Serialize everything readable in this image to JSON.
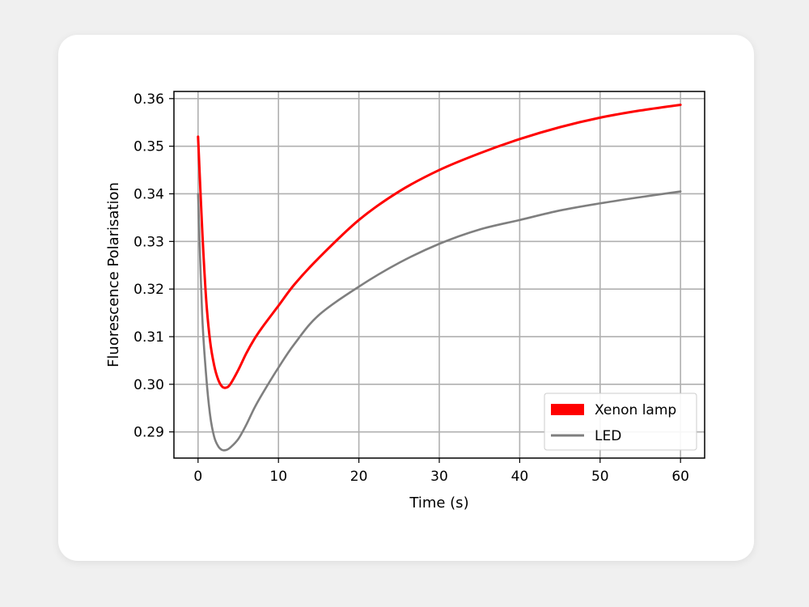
{
  "chart_data": {
    "type": "line",
    "title": "",
    "xlabel": "Time (s)",
    "ylabel": "Fluorescence Polarisation",
    "xlim": [
      -3,
      63
    ],
    "ylim": [
      0.2845,
      0.3615
    ],
    "xticks": [
      0,
      10,
      20,
      30,
      40,
      50,
      60
    ],
    "xtick_labels": [
      "0",
      "10",
      "20",
      "30",
      "40",
      "50",
      "60"
    ],
    "yticks": [
      0.29,
      0.3,
      0.31,
      0.32,
      0.33,
      0.34,
      0.35,
      0.36
    ],
    "ytick_labels": [
      "0.29",
      "0.30",
      "0.31",
      "0.32",
      "0.33",
      "0.34",
      "0.35",
      "0.36"
    ],
    "grid": true,
    "legend_position": "lower-right",
    "series": [
      {
        "name": "Xenon lamp",
        "color": "#ff0000",
        "x": [
          0,
          0.5,
          1,
          1.5,
          2,
          2.5,
          3,
          3.5,
          4,
          5,
          6,
          7,
          8,
          10,
          12,
          15,
          20,
          25,
          30,
          35,
          40,
          45,
          50,
          55,
          60
        ],
        "y": [
          0.352,
          0.333,
          0.318,
          0.309,
          0.304,
          0.301,
          0.2995,
          0.2993,
          0.3,
          0.303,
          0.3065,
          0.3095,
          0.312,
          0.3165,
          0.321,
          0.3265,
          0.3345,
          0.3405,
          0.345,
          0.3485,
          0.3515,
          0.354,
          0.356,
          0.3575,
          0.3587
        ]
      },
      {
        "name": "LED",
        "color": "#7f7f7f",
        "x": [
          0,
          0.5,
          1,
          1.5,
          2,
          2.5,
          3,
          3.5,
          4,
          5,
          6,
          7,
          8,
          10,
          12,
          15,
          20,
          25,
          30,
          35,
          40,
          45,
          50,
          55,
          60
        ],
        "y": [
          0.34,
          0.315,
          0.302,
          0.2935,
          0.289,
          0.287,
          0.2862,
          0.2862,
          0.2867,
          0.2885,
          0.2915,
          0.295,
          0.298,
          0.3035,
          0.3085,
          0.3145,
          0.3205,
          0.3255,
          0.3295,
          0.3325,
          0.3345,
          0.3365,
          0.338,
          0.3393,
          0.3405
        ]
      }
    ]
  }
}
